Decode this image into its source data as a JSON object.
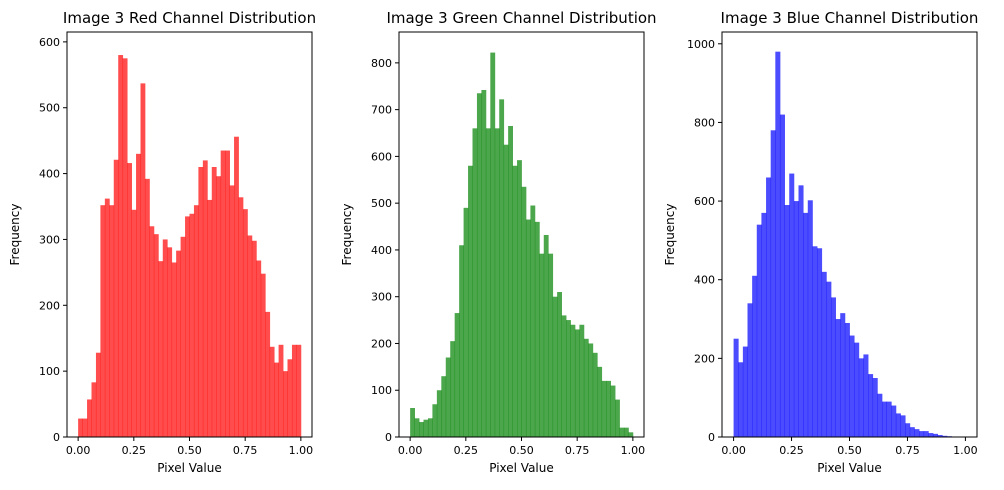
{
  "chart_data": [
    {
      "type": "bar",
      "title": "Image 3 Red Channel Distribution",
      "xlabel": "Pixel Value",
      "ylabel": "Frequency",
      "color": "#ff0000",
      "alpha": 0.7,
      "xlim": [
        -0.05,
        1.05
      ],
      "ylim": [
        0,
        615
      ],
      "xticks": [
        0,
        0.25,
        0.5,
        0.75,
        1
      ],
      "xtick_labels": [
        "0.00",
        "0.25",
        "0.50",
        "0.75",
        "1.00"
      ],
      "yticks": [
        0,
        100,
        200,
        300,
        400,
        500,
        600
      ],
      "ytick_labels": [
        "0",
        "100",
        "200",
        "300",
        "400",
        "500",
        "600"
      ],
      "bin_range": [
        0,
        1
      ],
      "values": [
        28,
        28,
        57,
        83,
        128,
        352,
        362,
        352,
        421,
        580,
        575,
        416,
        345,
        430,
        537,
        392,
        320,
        308,
        267,
        300,
        288,
        265,
        283,
        304,
        335,
        339,
        352,
        410,
        420,
        360,
        410,
        396,
        435,
        435,
        382,
        456,
        364,
        346,
        306,
        298,
        268,
        248,
        190,
        137,
        113,
        140,
        100,
        118,
        140,
        140
      ]
    },
    {
      "type": "bar",
      "title": "Image 3 Green Channel Distribution",
      "xlabel": "Pixel Value",
      "ylabel": "Frequency",
      "color": "#008000",
      "alpha": 0.7,
      "xlim": [
        -0.05,
        1.05
      ],
      "ylim": [
        0,
        866
      ],
      "xticks": [
        0,
        0.25,
        0.5,
        0.75,
        1
      ],
      "xtick_labels": [
        "0.00",
        "0.25",
        "0.50",
        "0.75",
        "1.00"
      ],
      "yticks": [
        0,
        100,
        200,
        300,
        400,
        500,
        600,
        700,
        800
      ],
      "ytick_labels": [
        "0",
        "100",
        "200",
        "300",
        "400",
        "500",
        "600",
        "700",
        "800"
      ],
      "bin_range": [
        0,
        1
      ],
      "values": [
        62,
        40,
        32,
        37,
        40,
        70,
        100,
        130,
        170,
        205,
        265,
        410,
        490,
        580,
        660,
        735,
        742,
        660,
        822,
        660,
        722,
        625,
        665,
        580,
        592,
        535,
        465,
        495,
        460,
        392,
        432,
        392,
        300,
        310,
        260,
        250,
        240,
        230,
        240,
        210,
        200,
        180,
        150,
        120,
        120,
        110,
        80,
        20,
        20,
        10
      ]
    },
    {
      "type": "bar",
      "title": "Image 3 Blue Channel Distribution",
      "xlabel": "Pixel Value",
      "ylabel": "Frequency",
      "color": "#0000ff",
      "alpha": 0.7,
      "xlim": [
        -0.05,
        1.05
      ],
      "ylim": [
        0,
        1030
      ],
      "xticks": [
        0,
        0.25,
        0.5,
        0.75,
        1
      ],
      "xtick_labels": [
        "0.00",
        "0.25",
        "0.50",
        "0.75",
        "1.00"
      ],
      "yticks": [
        0,
        200,
        400,
        600,
        800,
        1000
      ],
      "ytick_labels": [
        "0",
        "200",
        "400",
        "600",
        "800",
        "1000"
      ],
      "bin_range": [
        0,
        1
      ],
      "values": [
        250,
        190,
        230,
        340,
        410,
        540,
        570,
        660,
        780,
        980,
        820,
        590,
        670,
        600,
        640,
        570,
        602,
        485,
        480,
        420,
        395,
        355,
        300,
        315,
        290,
        258,
        240,
        200,
        210,
        160,
        150,
        110,
        90,
        90,
        80,
        60,
        55,
        35,
        25,
        20,
        15,
        15,
        10,
        8,
        5,
        3,
        2,
        1,
        1,
        1
      ]
    }
  ]
}
